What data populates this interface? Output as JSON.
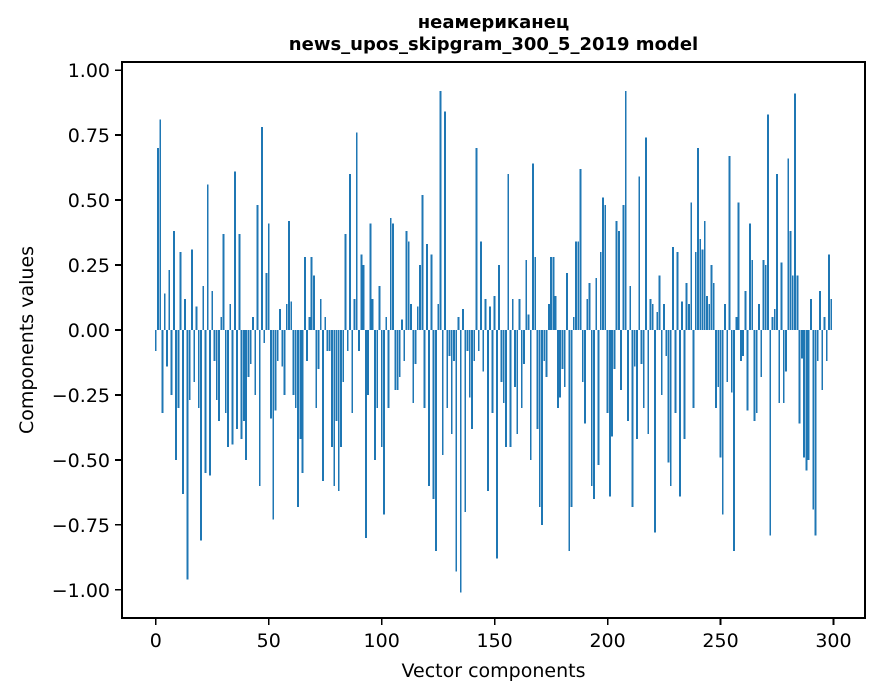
{
  "chart": {
    "title_word": "неамериканец",
    "title_model": "news_upos_skipgram_300_5_2019 model",
    "xlabel": "Vector components",
    "ylabel": "Components values",
    "bar_color": "#1f77b4",
    "x_tick_labels": [
      "0",
      "50",
      "100",
      "150",
      "200",
      "250",
      "300"
    ],
    "y_tick_labels": [
      "1.00",
      "0.75",
      "0.50",
      "0.25",
      "0.00",
      "−0.25",
      "−0.50",
      "−0.75",
      "−1.00"
    ]
  },
  "chart_data": {
    "type": "bar",
    "title": "неамериканец",
    "subtitle": "news_upos_skipgram_300_5_2019 model",
    "xlabel": "Vector components",
    "ylabel": "Components values",
    "n_components": 300,
    "x_ticks": [
      0,
      50,
      100,
      150,
      200,
      250,
      300
    ],
    "y_ticks": [
      1.0,
      0.75,
      0.5,
      0.25,
      0.0,
      -0.25,
      -0.5,
      -0.75,
      -1.0
    ],
    "xlim": [
      -14.95,
      313.95
    ],
    "ylim": [
      -1.108,
      1.031
    ],
    "grid": false,
    "values": [
      -0.08,
      0.7,
      0.81,
      -0.32,
      0.14,
      -0.14,
      0.23,
      -0.25,
      0.38,
      -0.5,
      -0.3,
      0.3,
      -0.63,
      0.12,
      -0.96,
      -0.27,
      0.31,
      -0.2,
      0.09,
      -0.3,
      -0.81,
      0.17,
      -0.55,
      0.56,
      -0.56,
      0.15,
      -0.12,
      -0.27,
      -0.35,
      0.05,
      0.37,
      -0.32,
      -0.45,
      0.1,
      -0.44,
      0.61,
      -0.38,
      0.37,
      -0.42,
      -0.35,
      -0.5,
      -0.18,
      -0.13,
      0.05,
      -0.25,
      0.48,
      -0.6,
      0.78,
      -0.05,
      0.22,
      0.41,
      -0.34,
      -0.73,
      -0.31,
      -0.12,
      0.08,
      -0.14,
      -0.25,
      0.1,
      0.42,
      0.11,
      -0.25,
      -0.3,
      -0.68,
      -0.42,
      -0.55,
      0.28,
      -0.12,
      0.05,
      0.28,
      0.21,
      -0.3,
      -0.15,
      0.12,
      -0.58,
      0.05,
      -0.08,
      -0.08,
      -0.45,
      -0.6,
      -0.35,
      -0.62,
      -0.45,
      -0.2,
      0.37,
      -0.08,
      0.6,
      -0.32,
      0.12,
      0.76,
      -0.08,
      0.29,
      0.25,
      -0.8,
      -0.25,
      0.41,
      0.12,
      -0.5,
      -0.3,
      0.17,
      -0.45,
      -0.71,
      0.05,
      -0.3,
      0.43,
      0.41,
      -0.23,
      -0.23,
      -0.18,
      0.04,
      -0.12,
      0.38,
      0.34,
      0.1,
      -0.28,
      -0.13,
      0.09,
      0.25,
      0.52,
      -0.3,
      0.33,
      -0.6,
      0.29,
      -0.65,
      -0.85,
      0.1,
      0.92,
      -0.48,
      0.84,
      -0.3,
      -0.1,
      -0.4,
      -0.12,
      -0.93,
      0.05,
      -1.01,
      0.08,
      -0.7,
      -0.08,
      -0.26,
      -0.38,
      -0.12,
      0.7,
      -0.08,
      0.34,
      -0.16,
      0.12,
      -0.62,
      0.09,
      -0.32,
      0.13,
      -0.88,
      0.25,
      -0.2,
      -0.28,
      -0.45,
      0.6,
      -0.45,
      0.12,
      -0.22,
      -0.4,
      0.12,
      -0.3,
      -0.13,
      0.27,
      0.06,
      -0.5,
      0.64,
      0.28,
      -0.38,
      -0.68,
      -0.75,
      -0.12,
      -0.18,
      0.1,
      0.28,
      0.28,
      0.13,
      -0.3,
      -0.26,
      -0.15,
      -0.22,
      0.22,
      -0.85,
      -0.68,
      0.05,
      0.34,
      0.34,
      0.62,
      -0.2,
      -0.36,
      0.12,
      0.18,
      -0.6,
      -0.65,
      0.2,
      -0.52,
      0.3,
      0.51,
      0.48,
      -0.32,
      -0.64,
      -0.41,
      -0.15,
      0.42,
      0.38,
      -0.23,
      0.48,
      0.92,
      -0.35,
      0.17,
      -0.68,
      -0.14,
      -0.42,
      0.59,
      -0.13,
      -0.3,
      0.74,
      -0.4,
      0.12,
      0.1,
      -0.78,
      0.07,
      0.21,
      -0.25,
      0.1,
      -0.1,
      -0.51,
      -0.6,
      0.32,
      -0.32,
      0.3,
      -0.64,
      0.11,
      -0.42,
      0.18,
      0.1,
      0.49,
      -0.3,
      0.3,
      0.7,
      0.35,
      0.31,
      0.42,
      0.13,
      0.1,
      0.25,
      0.18,
      -0.3,
      -0.22,
      -0.49,
      -0.71,
      0.1,
      -0.2,
      0.67,
      -0.24,
      -0.85,
      0.05,
      0.49,
      -0.12,
      -0.1,
      0.15,
      -0.31,
      0.41,
      0.27,
      -0.35,
      -0.32,
      0.1,
      -0.18,
      0.27,
      0.25,
      0.83,
      -0.79,
      0.05,
      0.08,
      0.6,
      -0.28,
      0.26,
      -0.28,
      -0.16,
      0.66,
      0.38,
      0.21,
      0.91,
      0.21,
      -0.36,
      -0.11,
      -0.49,
      -0.54,
      -0.5,
      0.12,
      -0.69,
      -0.79,
      -0.12,
      0.15,
      -0.23,
      0.05,
      -0.12,
      0.29,
      0.12
    ]
  }
}
